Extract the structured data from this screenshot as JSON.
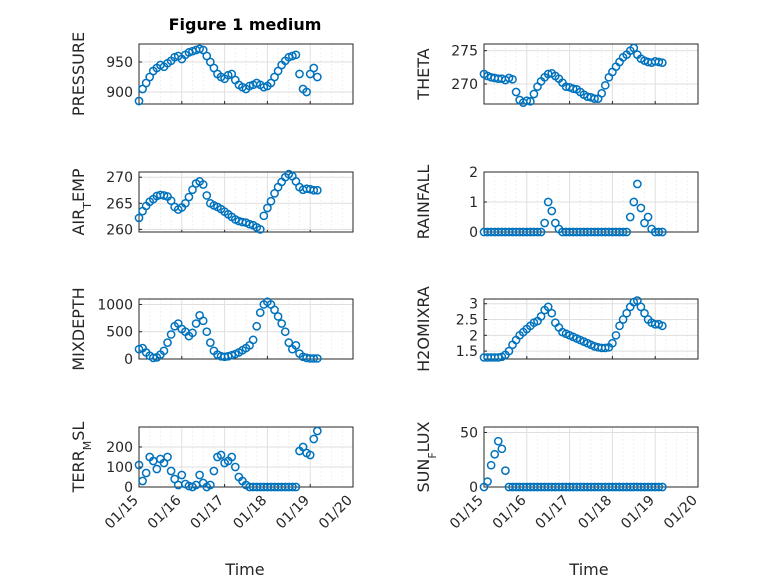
{
  "figure": {
    "title": "Figure 1 medium",
    "marker_color": "#0072BD",
    "x_axis_label": "Time",
    "x_ticks": [
      "01/15",
      "01/16",
      "01/17",
      "01/18",
      "01/19",
      "01/20"
    ]
  },
  "chart_data": [
    {
      "type": "scatter",
      "ylabel": "PRESSURE",
      "yticks": [
        "900",
        "950"
      ],
      "ylim": [
        880,
        980
      ],
      "xlim": [
        "01/15",
        "01/20"
      ],
      "grid": true,
      "x": [
        "01/15 00:00",
        "01/15 02:00",
        "01/15 04:00",
        "01/15 06:00",
        "01/15 08:00",
        "01/15 10:00",
        "01/15 12:00",
        "01/15 14:00",
        "01/15 16:00",
        "01/15 18:00",
        "01/15 20:00",
        "01/15 22:00",
        "01/16 00:00",
        "01/16 02:00",
        "01/16 04:00",
        "01/16 06:00",
        "01/16 08:00",
        "01/16 10:00",
        "01/16 12:00",
        "01/16 14:00",
        "01/16 16:00",
        "01/16 18:00",
        "01/16 20:00",
        "01/16 22:00",
        "01/17 00:00",
        "01/17 02:00",
        "01/17 04:00",
        "01/17 06:00",
        "01/17 08:00",
        "01/17 10:00",
        "01/17 12:00",
        "01/17 14:00",
        "01/17 16:00",
        "01/17 18:00",
        "01/17 20:00",
        "01/17 22:00",
        "01/18 00:00",
        "01/18 02:00",
        "01/18 04:00",
        "01/18 06:00",
        "01/18 08:00",
        "01/18 10:00",
        "01/18 12:00",
        "01/18 14:00",
        "01/18 16:00",
        "01/18 18:00",
        "01/18 20:00",
        "01/18 22:00",
        "01/19 00:00",
        "01/19 02:00",
        "01/19 04:00"
      ],
      "y": [
        885,
        905,
        915,
        925,
        935,
        940,
        945,
        942,
        948,
        952,
        958,
        960,
        955,
        962,
        966,
        968,
        970,
        972,
        970,
        960,
        950,
        940,
        930,
        925,
        922,
        928,
        930,
        920,
        912,
        908,
        905,
        910,
        912,
        915,
        912,
        908,
        910,
        915,
        925,
        935,
        945,
        952,
        958,
        960,
        962,
        930,
        905,
        900,
        930,
        940,
        925
      ]
    },
    {
      "type": "scatter",
      "ylabel": "THETA",
      "yticks": [
        "270",
        "275"
      ],
      "ylim": [
        267,
        276
      ],
      "xlim": [
        "01/15",
        "01/20"
      ],
      "grid": true,
      "x": [
        "01/15 00:00",
        "01/15 02:00",
        "01/15 04:00",
        "01/15 06:00",
        "01/15 08:00",
        "01/15 10:00",
        "01/15 12:00",
        "01/15 14:00",
        "01/15 16:00",
        "01/15 18:00",
        "01/15 20:00",
        "01/15 22:00",
        "01/16 00:00",
        "01/16 02:00",
        "01/16 04:00",
        "01/16 06:00",
        "01/16 08:00",
        "01/16 10:00",
        "01/16 12:00",
        "01/16 14:00",
        "01/16 16:00",
        "01/16 18:00",
        "01/16 20:00",
        "01/16 22:00",
        "01/17 00:00",
        "01/17 02:00",
        "01/17 04:00",
        "01/17 06:00",
        "01/17 08:00",
        "01/17 10:00",
        "01/17 12:00",
        "01/17 14:00",
        "01/17 16:00",
        "01/17 18:00",
        "01/17 20:00",
        "01/17 22:00",
        "01/18 00:00",
        "01/18 02:00",
        "01/18 04:00",
        "01/18 06:00",
        "01/18 08:00",
        "01/18 10:00",
        "01/18 12:00",
        "01/18 14:00",
        "01/18 16:00",
        "01/18 18:00",
        "01/18 20:00",
        "01/18 22:00",
        "01/19 00:00",
        "01/19 02:00",
        "01/19 04:00"
      ],
      "y": [
        271.5,
        271.2,
        271,
        270.9,
        270.8,
        270.8,
        270.6,
        270.9,
        270.7,
        268.8,
        267.6,
        267.2,
        267.5,
        267.4,
        268.5,
        269.6,
        270.4,
        271.0,
        271.5,
        271.6,
        271.2,
        270.8,
        270.2,
        269.6,
        269.5,
        269.3,
        269.2,
        268.8,
        268.4,
        268.1,
        268.0,
        267.8,
        267.8,
        268.6,
        269.8,
        271.0,
        271.8,
        272.6,
        273.3,
        274.0,
        274.4,
        275.0,
        275.4,
        274.4,
        273.8,
        273.5,
        273.3,
        273.2,
        273.4,
        273.3,
        273.2
      ]
    },
    {
      "type": "scatter",
      "ylabel": "AIR_TEMP",
      "yticks": [
        "260",
        "265",
        "270"
      ],
      "ylim": [
        259.5,
        271
      ],
      "xlim": [
        "01/15",
        "01/20"
      ],
      "grid": true,
      "x": [
        "01/15 00:00",
        "01/15 02:00",
        "01/15 04:00",
        "01/15 06:00",
        "01/15 08:00",
        "01/15 10:00",
        "01/15 12:00",
        "01/15 14:00",
        "01/15 16:00",
        "01/15 18:00",
        "01/15 20:00",
        "01/15 22:00",
        "01/16 00:00",
        "01/16 02:00",
        "01/16 04:00",
        "01/16 06:00",
        "01/16 08:00",
        "01/16 10:00",
        "01/16 12:00",
        "01/16 14:00",
        "01/16 16:00",
        "01/16 18:00",
        "01/16 20:00",
        "01/16 22:00",
        "01/17 00:00",
        "01/17 02:00",
        "01/17 04:00",
        "01/17 06:00",
        "01/17 08:00",
        "01/17 10:00",
        "01/17 12:00",
        "01/17 14:00",
        "01/17 16:00",
        "01/17 18:00",
        "01/17 20:00",
        "01/17 22:00",
        "01/18 00:00",
        "01/18 02:00",
        "01/18 04:00",
        "01/18 06:00",
        "01/18 08:00",
        "01/18 10:00",
        "01/18 12:00",
        "01/18 14:00",
        "01/18 16:00",
        "01/18 18:00",
        "01/18 20:00",
        "01/18 22:00",
        "01/19 00:00",
        "01/19 02:00",
        "01/19 04:00"
      ],
      "y": [
        262.2,
        263.5,
        264.5,
        265.3,
        265.8,
        266.4,
        266.6,
        266.5,
        266.3,
        265.5,
        264.3,
        263.8,
        264.2,
        265.0,
        266.2,
        267.6,
        268.8,
        269.2,
        268.6,
        266.5,
        265.0,
        264.6,
        264.3,
        263.9,
        263.4,
        262.9,
        262.4,
        261.9,
        261.6,
        261.4,
        261.3,
        261.0,
        260.8,
        260.4,
        260.0,
        262.6,
        264.1,
        265.4,
        266.9,
        268.1,
        269.1,
        270.0,
        270.6,
        270.2,
        269.2,
        268.1,
        267.6,
        267.8,
        267.7,
        267.5,
        267.5
      ]
    },
    {
      "type": "scatter",
      "ylabel": "RAINFALL",
      "yticks": [
        "0",
        "1",
        "2"
      ],
      "ylim": [
        0,
        2
      ],
      "xlim": [
        "01/15",
        "01/20"
      ],
      "grid": true,
      "x": [
        "01/15 00:00",
        "01/15 02:00",
        "01/15 04:00",
        "01/15 06:00",
        "01/15 08:00",
        "01/15 10:00",
        "01/15 12:00",
        "01/15 14:00",
        "01/15 16:00",
        "01/15 18:00",
        "01/15 20:00",
        "01/15 22:00",
        "01/16 00:00",
        "01/16 02:00",
        "01/16 04:00",
        "01/16 06:00",
        "01/16 08:00",
        "01/16 10:00",
        "01/16 12:00",
        "01/16 14:00",
        "01/16 16:00",
        "01/16 18:00",
        "01/16 20:00",
        "01/16 22:00",
        "01/17 00:00",
        "01/17 02:00",
        "01/17 04:00",
        "01/17 06:00",
        "01/17 08:00",
        "01/17 10:00",
        "01/17 12:00",
        "01/17 14:00",
        "01/17 16:00",
        "01/17 18:00",
        "01/17 20:00",
        "01/17 22:00",
        "01/18 00:00",
        "01/18 02:00",
        "01/18 04:00",
        "01/18 06:00",
        "01/18 08:00",
        "01/18 10:00",
        "01/18 12:00",
        "01/18 14:00",
        "01/18 16:00",
        "01/18 18:00",
        "01/18 20:00",
        "01/18 22:00",
        "01/19 00:00",
        "01/19 02:00",
        "01/19 04:00"
      ],
      "y": [
        0,
        0,
        0,
        0,
        0,
        0,
        0,
        0,
        0,
        0,
        0,
        0,
        0,
        0,
        0,
        0,
        0,
        0.3,
        1.0,
        0.7,
        0.3,
        0.1,
        0,
        0,
        0,
        0,
        0,
        0,
        0,
        0,
        0,
        0,
        0,
        0,
        0,
        0,
        0,
        0,
        0,
        0,
        0,
        0.5,
        1.0,
        1.6,
        0.8,
        0.3,
        0.5,
        0.1,
        0,
        0,
        0
      ]
    },
    {
      "type": "scatter",
      "ylabel": "MIXDEPTH",
      "yticks": [
        "0",
        "500",
        "1000"
      ],
      "ylim": [
        0,
        1100
      ],
      "xlim": [
        "01/15",
        "01/20"
      ],
      "grid": true,
      "x": [
        "01/15 00:00",
        "01/15 02:00",
        "01/15 04:00",
        "01/15 06:00",
        "01/15 08:00",
        "01/15 10:00",
        "01/15 12:00",
        "01/15 14:00",
        "01/15 16:00",
        "01/15 18:00",
        "01/15 20:00",
        "01/15 22:00",
        "01/16 00:00",
        "01/16 02:00",
        "01/16 04:00",
        "01/16 06:00",
        "01/16 08:00",
        "01/16 10:00",
        "01/16 12:00",
        "01/16 14:00",
        "01/16 16:00",
        "01/16 18:00",
        "01/16 20:00",
        "01/16 22:00",
        "01/17 00:00",
        "01/17 02:00",
        "01/17 04:00",
        "01/17 06:00",
        "01/17 08:00",
        "01/17 10:00",
        "01/17 12:00",
        "01/17 14:00",
        "01/17 16:00",
        "01/17 18:00",
        "01/17 20:00",
        "01/17 22:00",
        "01/18 00:00",
        "01/18 02:00",
        "01/18 04:00",
        "01/18 06:00",
        "01/18 08:00",
        "01/18 10:00",
        "01/18 12:00",
        "01/18 14:00",
        "01/18 16:00",
        "01/18 18:00",
        "01/18 20:00",
        "01/18 22:00",
        "01/19 00:00",
        "01/19 02:00",
        "01/19 04:00"
      ],
      "y": [
        180,
        200,
        120,
        60,
        20,
        30,
        80,
        150,
        300,
        450,
        600,
        650,
        550,
        500,
        420,
        480,
        650,
        800,
        700,
        500,
        300,
        150,
        80,
        50,
        40,
        50,
        70,
        90,
        120,
        160,
        200,
        250,
        350,
        600,
        850,
        1000,
        1050,
        1000,
        900,
        780,
        650,
        500,
        300,
        180,
        250,
        100,
        40,
        20,
        10,
        10,
        10
      ]
    },
    {
      "type": "scatter",
      "ylabel": "H2OMIXRA",
      "yticks": [
        "1.5",
        "2",
        "2.5",
        "3"
      ],
      "ylim": [
        1.25,
        3.15
      ],
      "xlim": [
        "01/15",
        "01/20"
      ],
      "grid": true,
      "x": [
        "01/15 00:00",
        "01/15 02:00",
        "01/15 04:00",
        "01/15 06:00",
        "01/15 08:00",
        "01/15 10:00",
        "01/15 12:00",
        "01/15 14:00",
        "01/15 16:00",
        "01/15 18:00",
        "01/15 20:00",
        "01/15 22:00",
        "01/16 00:00",
        "01/16 02:00",
        "01/16 04:00",
        "01/16 06:00",
        "01/16 08:00",
        "01/16 10:00",
        "01/16 12:00",
        "01/16 14:00",
        "01/16 16:00",
        "01/16 18:00",
        "01/16 20:00",
        "01/16 22:00",
        "01/17 00:00",
        "01/17 02:00",
        "01/17 04:00",
        "01/17 06:00",
        "01/17 08:00",
        "01/17 10:00",
        "01/17 12:00",
        "01/17 14:00",
        "01/17 16:00",
        "01/17 18:00",
        "01/17 20:00",
        "01/17 22:00",
        "01/18 00:00",
        "01/18 02:00",
        "01/18 04:00",
        "01/18 06:00",
        "01/18 08:00",
        "01/18 10:00",
        "01/18 12:00",
        "01/18 14:00",
        "01/18 16:00",
        "01/18 18:00",
        "01/18 20:00",
        "01/18 22:00",
        "01/19 00:00",
        "01/19 02:00",
        "01/19 04:00"
      ],
      "y": [
        1.3,
        1.3,
        1.3,
        1.3,
        1.3,
        1.32,
        1.38,
        1.5,
        1.7,
        1.85,
        2.0,
        2.1,
        2.2,
        2.3,
        2.4,
        2.45,
        2.6,
        2.8,
        2.9,
        2.7,
        2.4,
        2.25,
        2.1,
        2.05,
        2.0,
        1.95,
        1.9,
        1.85,
        1.8,
        1.75,
        1.7,
        1.65,
        1.62,
        1.6,
        1.6,
        1.62,
        1.75,
        2.0,
        2.3,
        2.5,
        2.7,
        2.9,
        3.05,
        3.1,
        2.9,
        2.7,
        2.5,
        2.4,
        2.35,
        2.35,
        2.3
      ]
    },
    {
      "type": "scatter",
      "ylabel": "TERR_MSL",
      "yticks": [
        "0",
        "100",
        "200"
      ],
      "ylim": [
        0,
        300
      ],
      "xlim": [
        "01/15",
        "01/20"
      ],
      "grid": true,
      "x": [
        "01/15 00:00",
        "01/15 02:00",
        "01/15 04:00",
        "01/15 06:00",
        "01/15 08:00",
        "01/15 10:00",
        "01/15 12:00",
        "01/15 14:00",
        "01/15 16:00",
        "01/15 18:00",
        "01/15 20:00",
        "01/15 22:00",
        "01/16 00:00",
        "01/16 02:00",
        "01/16 04:00",
        "01/16 06:00",
        "01/16 08:00",
        "01/16 10:00",
        "01/16 12:00",
        "01/16 14:00",
        "01/16 16:00",
        "01/16 18:00",
        "01/16 20:00",
        "01/16 22:00",
        "01/17 00:00",
        "01/17 02:00",
        "01/17 04:00",
        "01/17 06:00",
        "01/17 08:00",
        "01/17 10:00",
        "01/17 12:00",
        "01/17 14:00",
        "01/17 16:00",
        "01/17 18:00",
        "01/17 20:00",
        "01/17 22:00",
        "01/18 00:00",
        "01/18 02:00",
        "01/18 04:00",
        "01/18 06:00",
        "01/18 08:00",
        "01/18 10:00",
        "01/18 12:00",
        "01/18 14:00",
        "01/18 16:00",
        "01/18 18:00",
        "01/18 20:00",
        "01/18 22:00",
        "01/19 00:00",
        "01/19 02:00",
        "01/19 04:00"
      ],
      "y": [
        110,
        30,
        70,
        150,
        130,
        90,
        140,
        120,
        150,
        80,
        40,
        10,
        60,
        15,
        5,
        0,
        10,
        60,
        20,
        0,
        10,
        80,
        150,
        160,
        120,
        130,
        150,
        100,
        50,
        30,
        10,
        0,
        0,
        0,
        0,
        0,
        0,
        0,
        0,
        0,
        0,
        0,
        0,
        0,
        0,
        180,
        200,
        170,
        160,
        240,
        280
      ]
    },
    {
      "type": "scatter",
      "ylabel": "SUN_FLUX",
      "yticks": [
        "0",
        "50"
      ],
      "ylim": [
        0,
        55
      ],
      "xlim": [
        "01/15",
        "01/20"
      ],
      "grid": true,
      "x": [
        "01/15 00:00",
        "01/15 02:00",
        "01/15 04:00",
        "01/15 06:00",
        "01/15 08:00",
        "01/15 10:00",
        "01/15 12:00",
        "01/15 14:00",
        "01/15 16:00",
        "01/15 18:00",
        "01/15 20:00",
        "01/15 22:00",
        "01/16 00:00",
        "01/16 02:00",
        "01/16 04:00",
        "01/16 06:00",
        "01/16 08:00",
        "01/16 10:00",
        "01/16 12:00",
        "01/16 14:00",
        "01/16 16:00",
        "01/16 18:00",
        "01/16 20:00",
        "01/16 22:00",
        "01/17 00:00",
        "01/17 02:00",
        "01/17 04:00",
        "01/17 06:00",
        "01/17 08:00",
        "01/17 10:00",
        "01/17 12:00",
        "01/17 14:00",
        "01/17 16:00",
        "01/17 18:00",
        "01/17 20:00",
        "01/17 22:00",
        "01/18 00:00",
        "01/18 02:00",
        "01/18 04:00",
        "01/18 06:00",
        "01/18 08:00",
        "01/18 10:00",
        "01/18 12:00",
        "01/18 14:00",
        "01/18 16:00",
        "01/18 18:00",
        "01/18 20:00",
        "01/18 22:00",
        "01/19 00:00",
        "01/19 02:00",
        "01/19 04:00"
      ],
      "y": [
        0,
        5,
        20,
        30,
        42,
        35,
        15,
        0,
        0,
        0,
        0,
        0,
        0,
        0,
        0,
        0,
        0,
        0,
        0,
        0,
        0,
        0,
        0,
        0,
        0,
        0,
        0,
        0,
        0,
        0,
        0,
        0,
        0,
        0,
        0,
        0,
        0,
        0,
        0,
        0,
        0,
        0,
        0,
        0,
        0,
        0,
        0,
        0,
        0,
        0,
        0
      ]
    }
  ]
}
